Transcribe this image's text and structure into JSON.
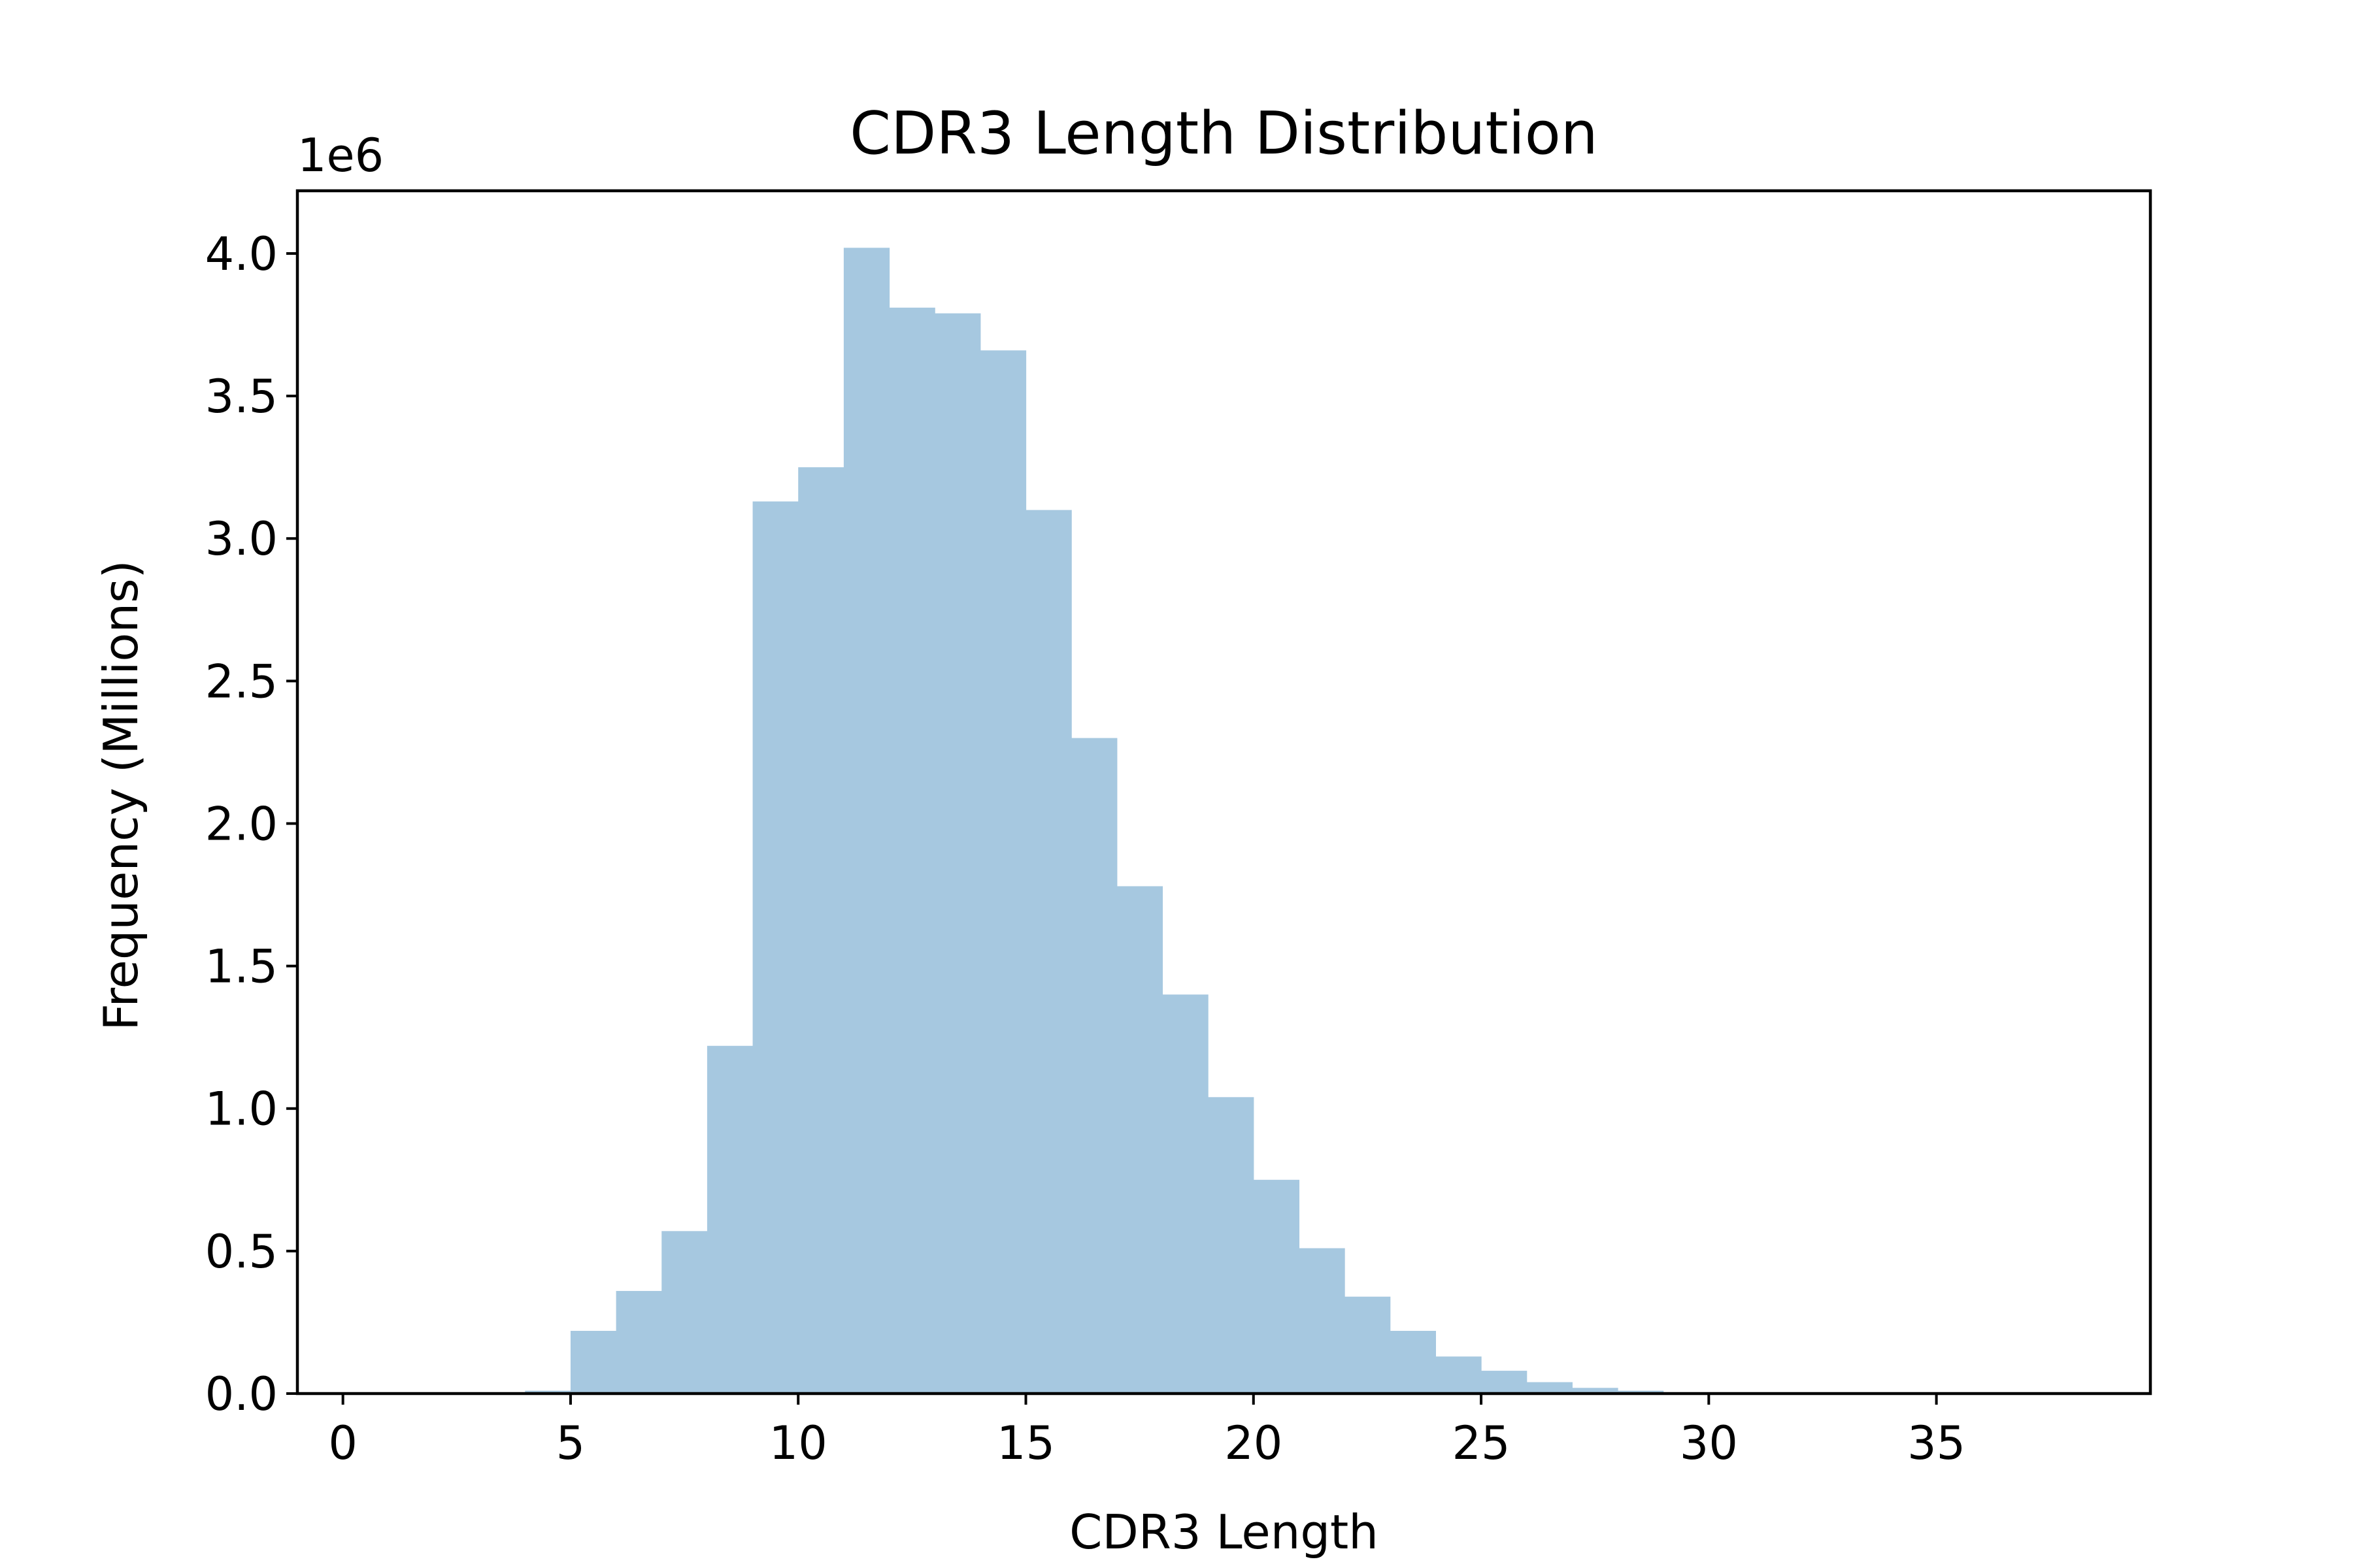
{
  "chart_data": {
    "type": "bar",
    "title": "CDR3 Length Distribution",
    "xlabel": "CDR3 Length",
    "ylabel": "Frequency (Millions)",
    "y_offset_label": "1e6",
    "xlim": [
      -1,
      39.7
    ],
    "ylim": [
      0,
      4.22
    ],
    "x_ticks": [
      0,
      5,
      10,
      15,
      20,
      25,
      30,
      35
    ],
    "x_tick_labels": [
      "0",
      "5",
      "10",
      "15",
      "20",
      "25",
      "30",
      "35"
    ],
    "y_ticks": [
      0,
      0.5,
      1.0,
      1.5,
      2.0,
      2.5,
      3.0,
      3.5,
      4.0
    ],
    "y_tick_labels": [
      "0.0",
      "0.5",
      "1.0",
      "1.5",
      "2.0",
      "2.5",
      "3.0",
      "3.5",
      "4.0"
    ],
    "bin_edges": [
      4,
      5,
      6,
      7,
      8,
      9,
      10,
      11,
      12,
      13,
      14,
      15,
      16,
      17,
      18,
      19,
      20,
      21,
      22,
      23,
      24,
      25,
      26,
      27,
      28,
      29,
      30
    ],
    "values": [
      0.01,
      0.22,
      0.36,
      0.57,
      1.22,
      3.13,
      3.25,
      4.02,
      3.81,
      3.79,
      3.66,
      3.1,
      2.3,
      1.78,
      1.4,
      1.04,
      0.75,
      0.51,
      0.34,
      0.22,
      0.13,
      0.08,
      0.04,
      0.02,
      0.01,
      0.003
    ],
    "bar_color": "#a6c8e0",
    "grid": false,
    "legend": "none"
  }
}
